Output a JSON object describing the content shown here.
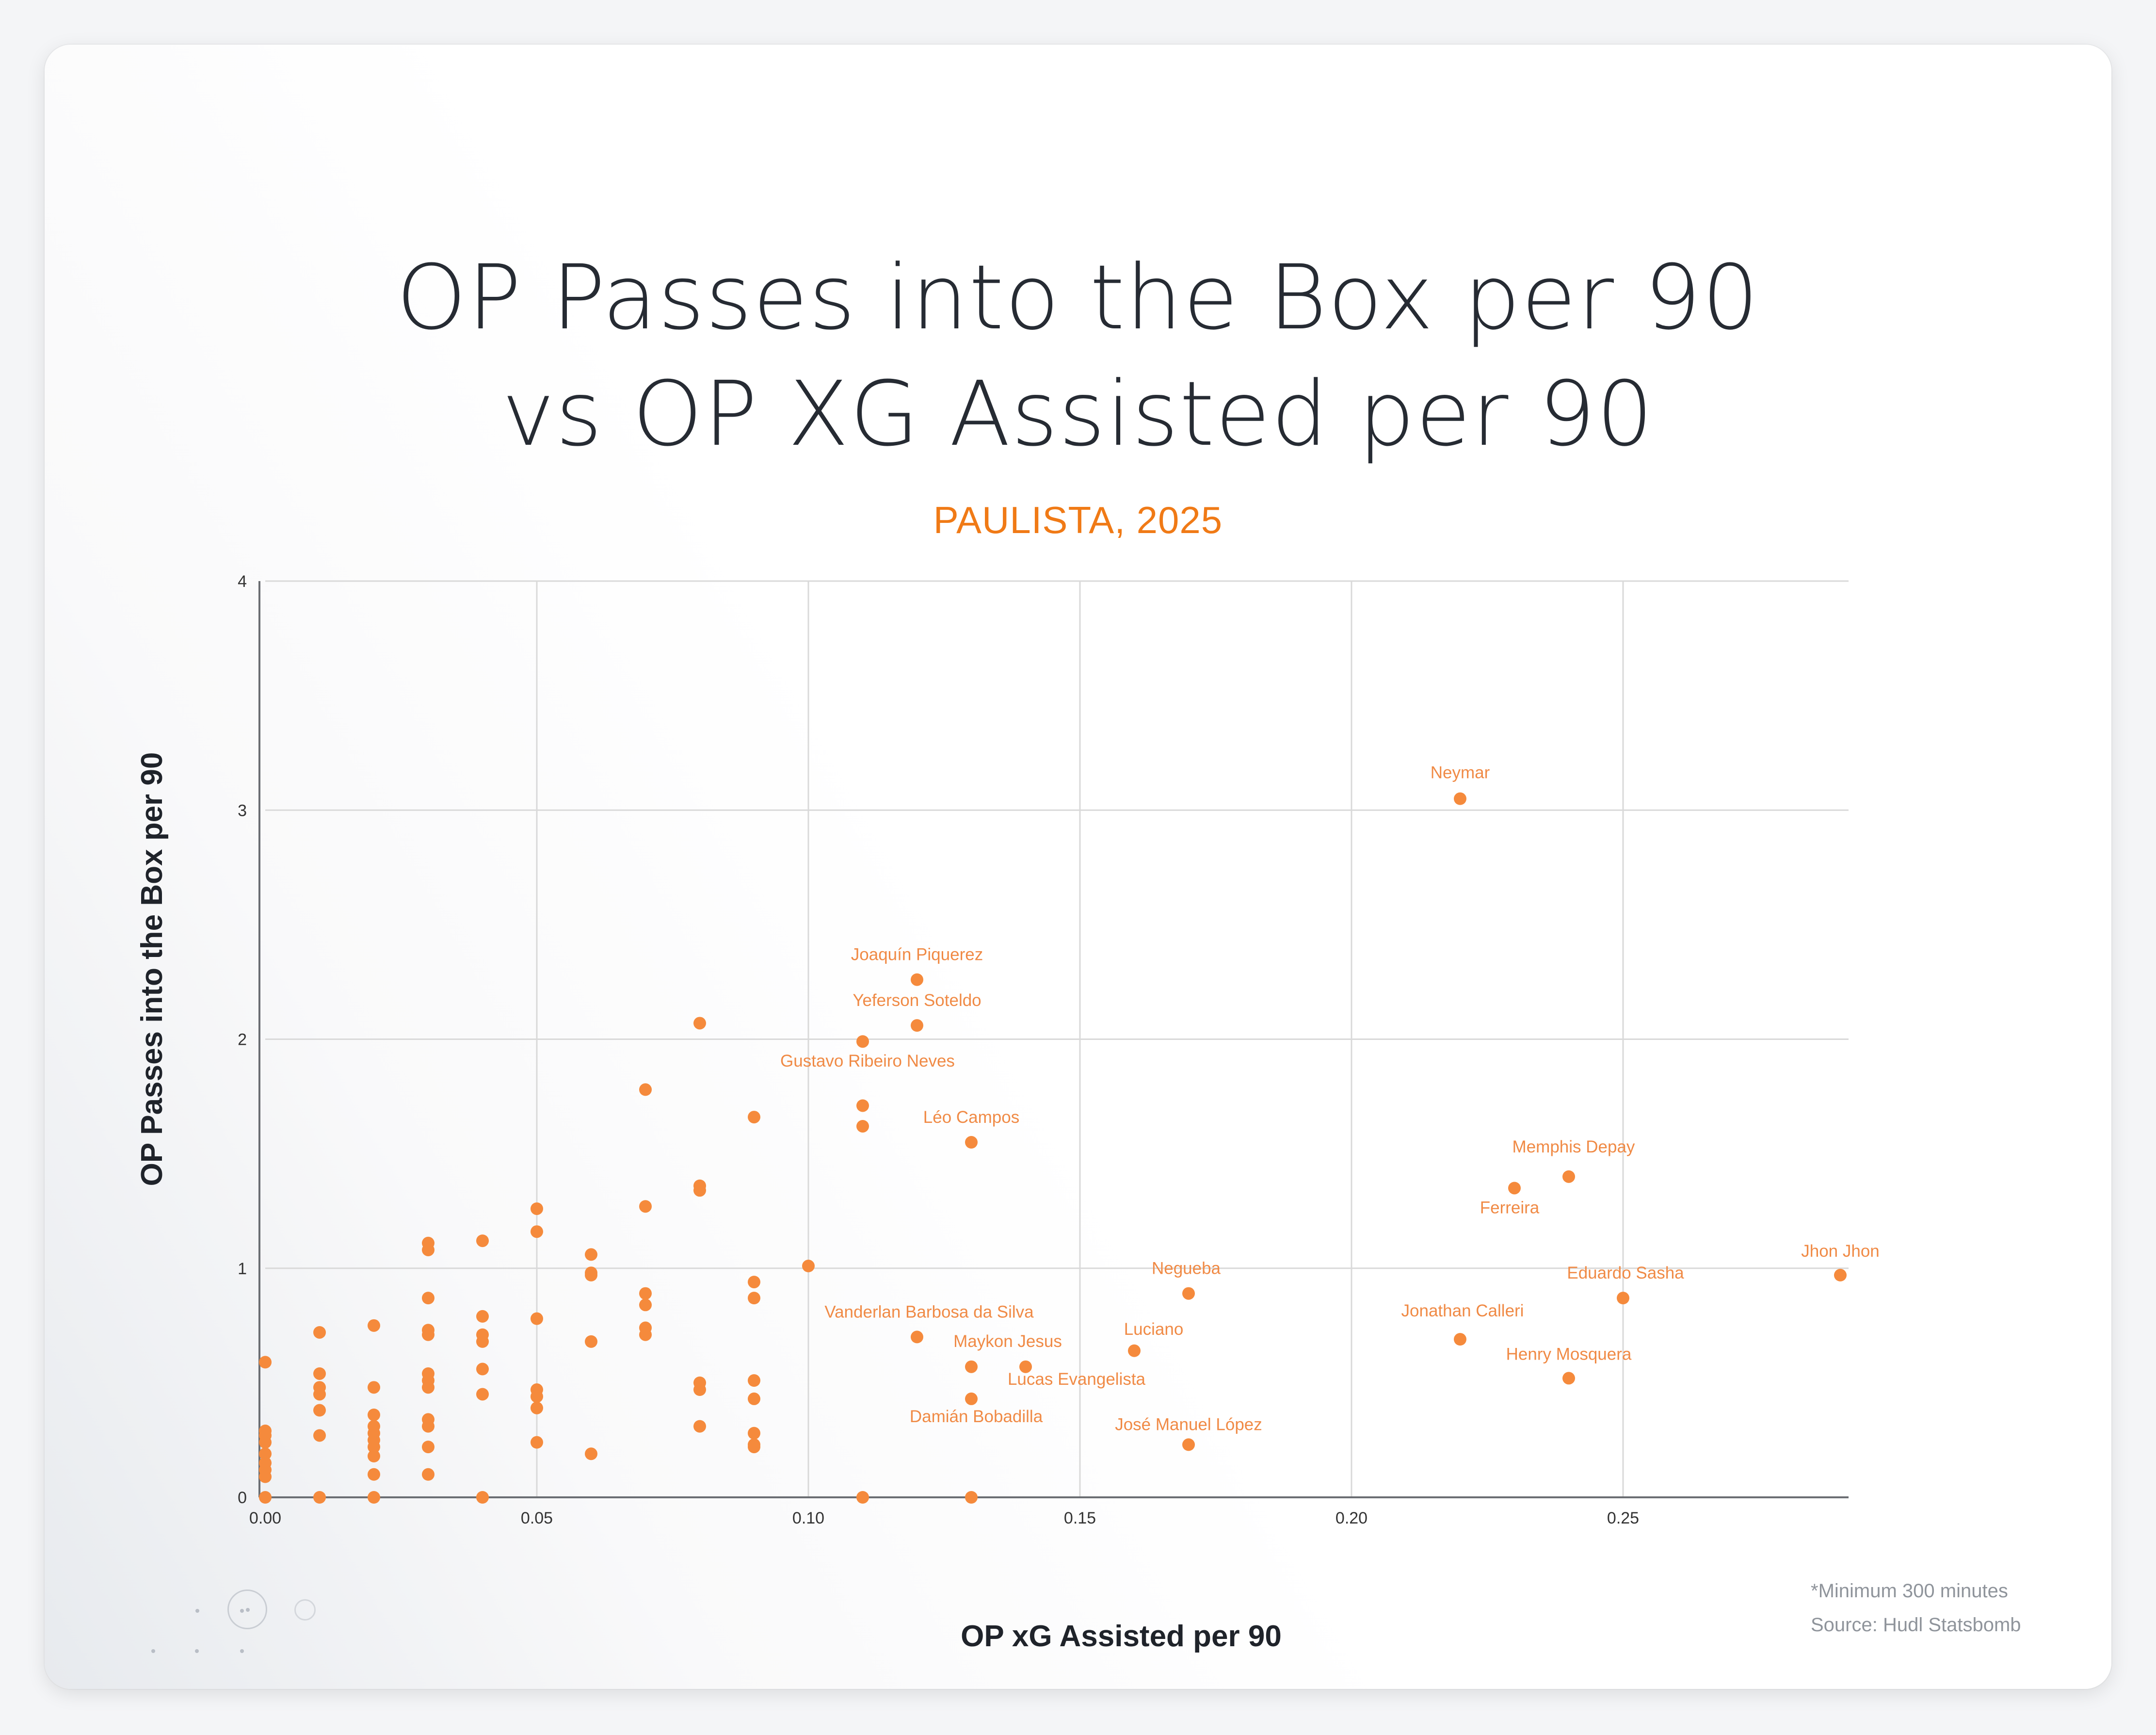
{
  "header": {
    "title_line1": "OP Passes into the Box per 90",
    "title_line2": "vs OP XG Assisted per 90",
    "subtitle": "PAULISTA, 2025"
  },
  "footnote": {
    "minimum": "*Minimum 300 minutes",
    "source": "Source: Hudl Statsbomb"
  },
  "colors": {
    "accent": "#f07a16",
    "point": "#f58a3c",
    "label": "#f08a45",
    "grid": "#d9d9d9",
    "title": "#262b33"
  },
  "chart_data": {
    "type": "scatter",
    "title": "OP Passes into the Box per 90 vs OP XG Assisted per 90",
    "subtitle": "PAULISTA, 2025",
    "xlabel": "OP xG Assisted per 90",
    "ylabel": "OP Passes into the Box per 90",
    "xlim": [
      0,
      0.29
    ],
    "ylim": [
      0,
      4
    ],
    "grid": true,
    "x_ticks": [
      {
        "value": 0,
        "label": "0.00"
      },
      {
        "value": 0.05,
        "label": "0.05"
      },
      {
        "value": 0.1,
        "label": "0.10"
      },
      {
        "value": 0.15,
        "label": "0.15"
      },
      {
        "value": 0.2,
        "label": "0.20"
      },
      {
        "value": 0.25,
        "label": "0.25"
      }
    ],
    "y_ticks": [
      {
        "value": 0,
        "label": "0"
      },
      {
        "value": 1,
        "label": "1"
      },
      {
        "value": 2,
        "label": "2"
      },
      {
        "value": 3,
        "label": "3"
      },
      {
        "value": 4,
        "label": "4"
      }
    ],
    "labeled_points": [
      {
        "name": "Neymar",
        "x": 0.22,
        "y": 3.05
      },
      {
        "name": "Joaquín Piquerez",
        "x": 0.12,
        "y": 2.26
      },
      {
        "name": "Yeferson Soteldo",
        "x": 0.12,
        "y": 2.06
      },
      {
        "name": "Gustavo Ribeiro Neves",
        "x": 0.11,
        "y": 1.99
      },
      {
        "name": "Léo Campos",
        "x": 0.13,
        "y": 1.55
      },
      {
        "name": "Memphis Depay",
        "x": 0.24,
        "y": 1.4
      },
      {
        "name": "Ferreira",
        "x": 0.23,
        "y": 1.35
      },
      {
        "name": "Jhon Jhon",
        "x": 0.29,
        "y": 0.97
      },
      {
        "name": "Negueba",
        "x": 0.17,
        "y": 0.89
      },
      {
        "name": "Eduardo Sasha",
        "x": 0.25,
        "y": 0.87
      },
      {
        "name": "Vanderlan Barbosa da Silva",
        "x": 0.12,
        "y": 0.7
      },
      {
        "name": "Jonathan Calleri",
        "x": 0.22,
        "y": 0.69
      },
      {
        "name": "Luciano",
        "x": 0.16,
        "y": 0.64
      },
      {
        "name": "Maykon Jesus",
        "x": 0.13,
        "y": 0.57
      },
      {
        "name": "Lucas Evangelista",
        "x": 0.14,
        "y": 0.57
      },
      {
        "name": "Henry Mosquera",
        "x": 0.24,
        "y": 0.52
      },
      {
        "name": "Damián Bobadilla",
        "x": 0.13,
        "y": 0.43
      },
      {
        "name": "José Manuel López",
        "x": 0.17,
        "y": 0.23
      }
    ],
    "unlabeled_points": [
      [
        0.0,
        0.59
      ],
      [
        0.0,
        0.29
      ],
      [
        0.0,
        0.27
      ],
      [
        0.0,
        0.24
      ],
      [
        0.0,
        0.19
      ],
      [
        0.0,
        0.15
      ],
      [
        0.0,
        0.12
      ],
      [
        0.0,
        0.09
      ],
      [
        0.0,
        0.0
      ],
      [
        0.01,
        0.72
      ],
      [
        0.01,
        0.54
      ],
      [
        0.01,
        0.48
      ],
      [
        0.01,
        0.45
      ],
      [
        0.01,
        0.38
      ],
      [
        0.01,
        0.27
      ],
      [
        0.01,
        0.0
      ],
      [
        0.02,
        0.75
      ],
      [
        0.02,
        0.48
      ],
      [
        0.02,
        0.36
      ],
      [
        0.02,
        0.31
      ],
      [
        0.02,
        0.28
      ],
      [
        0.02,
        0.25
      ],
      [
        0.02,
        0.22
      ],
      [
        0.02,
        0.18
      ],
      [
        0.02,
        0.1
      ],
      [
        0.02,
        0.0
      ],
      [
        0.03,
        1.11
      ],
      [
        0.03,
        1.08
      ],
      [
        0.03,
        0.87
      ],
      [
        0.03,
        0.73
      ],
      [
        0.03,
        0.71
      ],
      [
        0.03,
        0.54
      ],
      [
        0.03,
        0.51
      ],
      [
        0.03,
        0.48
      ],
      [
        0.03,
        0.34
      ],
      [
        0.03,
        0.31
      ],
      [
        0.03,
        0.22
      ],
      [
        0.03,
        0.1
      ],
      [
        0.04,
        1.12
      ],
      [
        0.04,
        0.79
      ],
      [
        0.04,
        0.71
      ],
      [
        0.04,
        0.68
      ],
      [
        0.04,
        0.56
      ],
      [
        0.04,
        0.45
      ],
      [
        0.04,
        0.0
      ],
      [
        0.05,
        1.26
      ],
      [
        0.05,
        1.16
      ],
      [
        0.05,
        0.78
      ],
      [
        0.05,
        0.47
      ],
      [
        0.05,
        0.44
      ],
      [
        0.05,
        0.39
      ],
      [
        0.05,
        0.24
      ],
      [
        0.06,
        1.06
      ],
      [
        0.06,
        0.98
      ],
      [
        0.06,
        0.97
      ],
      [
        0.06,
        0.68
      ],
      [
        0.06,
        0.19
      ],
      [
        0.07,
        1.78
      ],
      [
        0.07,
        1.27
      ],
      [
        0.07,
        0.89
      ],
      [
        0.07,
        0.84
      ],
      [
        0.07,
        0.74
      ],
      [
        0.07,
        0.71
      ],
      [
        0.08,
        2.07
      ],
      [
        0.08,
        1.36
      ],
      [
        0.08,
        1.34
      ],
      [
        0.08,
        0.5
      ],
      [
        0.08,
        0.47
      ],
      [
        0.08,
        0.31
      ],
      [
        0.09,
        1.66
      ],
      [
        0.09,
        0.94
      ],
      [
        0.09,
        0.87
      ],
      [
        0.09,
        0.51
      ],
      [
        0.09,
        0.43
      ],
      [
        0.09,
        0.28
      ],
      [
        0.09,
        0.23
      ],
      [
        0.09,
        0.22
      ],
      [
        0.1,
        1.01
      ],
      [
        0.11,
        1.71
      ],
      [
        0.11,
        1.62
      ],
      [
        0.11,
        0.0
      ],
      [
        0.13,
        0.0
      ]
    ]
  }
}
